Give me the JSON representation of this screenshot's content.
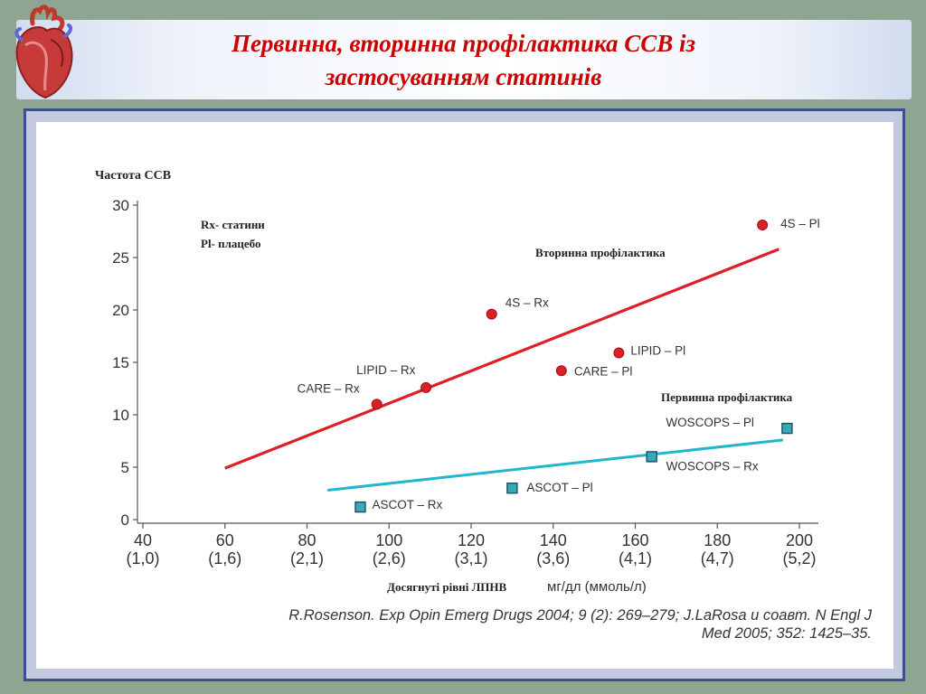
{
  "slide": {
    "title_line1": "Первинна, вторинна профілактика ССВ із",
    "title_line2": "застосуванням статинів"
  },
  "icons": {
    "logo": "anatomical-heart-icon"
  },
  "colors": {
    "title": "#cc0000",
    "secondary_series": "#dd1f26",
    "primary_series": "#1fb7c9",
    "frame_border": "#3c4f8e",
    "slide_background": "#8ea592"
  },
  "chart_data": {
    "type": "scatter",
    "title": "",
    "ylabel": "Частота ССВ",
    "xlabel": "Досягнуті рівні ЛПНВ",
    "xunit": "мг/дл (ммоль/л)",
    "xlim": [
      40,
      200
    ],
    "ylim": [
      0,
      30
    ],
    "x_ticks": [
      {
        "value": 40,
        "mgdl": "40",
        "mmol": "(1,0)"
      },
      {
        "value": 60,
        "mgdl": "60",
        "mmol": "(1,6)"
      },
      {
        "value": 80,
        "mgdl": "80",
        "mmol": "(2,1)"
      },
      {
        "value": 100,
        "mgdl": "100",
        "mmol": "(2,6)"
      },
      {
        "value": 120,
        "mgdl": "120",
        "mmol": "(3,1)"
      },
      {
        "value": 140,
        "mgdl": "140",
        "mmol": "(3,6)"
      },
      {
        "value": 160,
        "mgdl": "160",
        "mmol": "(4,1)"
      },
      {
        "value": 180,
        "mgdl": "180",
        "mmol": "(4,7)"
      },
      {
        "value": 200,
        "mgdl": "200",
        "mmol": "(5,2)"
      }
    ],
    "y_ticks": [
      0,
      5,
      10,
      15,
      20,
      25,
      30
    ],
    "legend": [
      "Rx- статини",
      "Pl- плацебо"
    ],
    "series": [
      {
        "name": "Вторинна профілактика",
        "marker": "circle",
        "color": "#dd1f26",
        "trend": {
          "x": [
            60,
            195
          ],
          "y": [
            4.9,
            25.8
          ]
        },
        "points": [
          {
            "label": "CARE – Rx",
            "x": 97,
            "y": 11.0
          },
          {
            "label": "LIPID – Rx",
            "x": 109,
            "y": 12.6
          },
          {
            "label": "4S – Rx",
            "x": 125,
            "y": 19.6
          },
          {
            "label": "CARE – Pl",
            "x": 142,
            "y": 14.2
          },
          {
            "label": "LIPID – Pl",
            "x": 156,
            "y": 15.9
          },
          {
            "label": "4S – Pl",
            "x": 191,
            "y": 28.1
          }
        ]
      },
      {
        "name": "Первинна профілактика",
        "marker": "square",
        "color": "#1fb7c9",
        "trend": {
          "x": [
            85,
            196
          ],
          "y": [
            2.8,
            7.6
          ]
        },
        "points": [
          {
            "label": "ASCOT – Rx",
            "x": 93,
            "y": 1.2
          },
          {
            "label": "ASCOT – Pl",
            "x": 130,
            "y": 3.0
          },
          {
            "label": "WOSCOPS – Rx",
            "x": 164,
            "y": 6.0
          },
          {
            "label": "WOSCOPS – Pl",
            "x": 197,
            "y": 8.7
          }
        ]
      }
    ],
    "citation_line1": "R.Rosenson. Exp Opin Emerg Drugs 2004; 9 (2): 269–279; J.LaRosa и соавт. N Engl J",
    "citation_line2": "Med 2005; 352: 1425–35."
  }
}
